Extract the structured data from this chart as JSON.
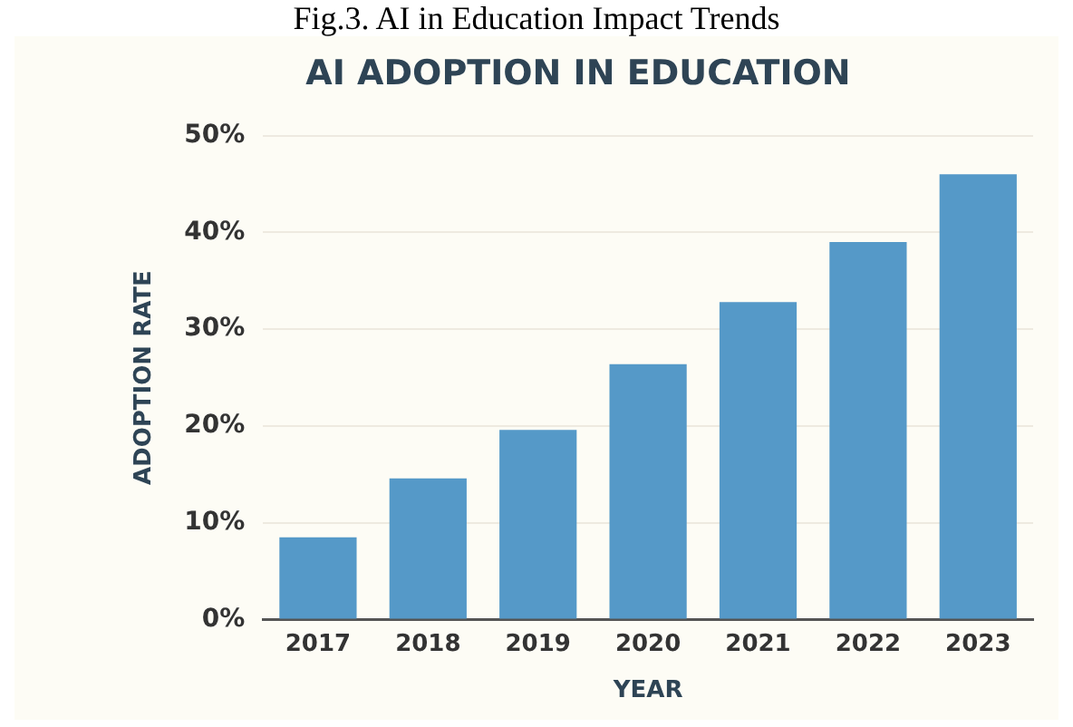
{
  "chart_data": {
    "type": "bar",
    "title": "AI ADOPTION IN EDUCATION",
    "xlabel": "YEAR",
    "ylabel": "ADOPTION RATE",
    "annotations": [
      "Fig.3.    AI in Education Impact Trends"
    ],
    "categories": [
      "2017",
      "2018",
      "2019",
      "2020",
      "2021",
      "2022",
      "2023"
    ],
    "values": [
      8.5,
      14.6,
      19.6,
      26.4,
      32.8,
      39,
      46
    ],
    "color": "#5599c8",
    "ylim": [
      0,
      50
    ],
    "yticks": [
      {
        "value": 0,
        "label": "0%"
      },
      {
        "value": 10,
        "label": "10%"
      },
      {
        "value": 20,
        "label": "20%"
      },
      {
        "value": 30,
        "label": "30%"
      },
      {
        "value": 40,
        "label": "40%"
      },
      {
        "value": 50,
        "label": "50%"
      }
    ],
    "grid": "y",
    "legend": false
  }
}
